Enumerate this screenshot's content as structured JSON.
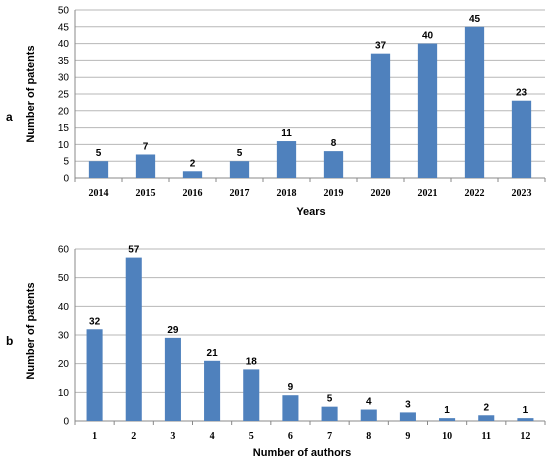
{
  "chart_data": [
    {
      "type": "bar",
      "panel_label": "a",
      "categories": [
        "2014",
        "2015",
        "2016",
        "2017",
        "2018",
        "2019",
        "2020",
        "2021",
        "2022",
        "2023"
      ],
      "values": [
        5,
        7,
        2,
        5,
        11,
        8,
        37,
        40,
        45,
        23
      ],
      "xlabel": "Years",
      "ylabel": "Number of patents",
      "ylim": [
        0,
        50
      ],
      "yticks": [
        0,
        5,
        10,
        15,
        20,
        25,
        30,
        35,
        40,
        45,
        50
      ],
      "grid": true,
      "bar_color": "#4f81bd"
    },
    {
      "type": "bar",
      "panel_label": "b",
      "categories": [
        "1",
        "2",
        "3",
        "4",
        "5",
        "6",
        "7",
        "8",
        "9",
        "10",
        "11",
        "12"
      ],
      "values": [
        32,
        57,
        29,
        21,
        18,
        9,
        5,
        4,
        3,
        1,
        2,
        1
      ],
      "xlabel": "Number of authors",
      "ylabel": "Number of patents",
      "ylim": [
        0,
        60
      ],
      "yticks": [
        0,
        10,
        20,
        30,
        40,
        50,
        60
      ],
      "grid": true,
      "bar_color": "#4f81bd"
    }
  ]
}
